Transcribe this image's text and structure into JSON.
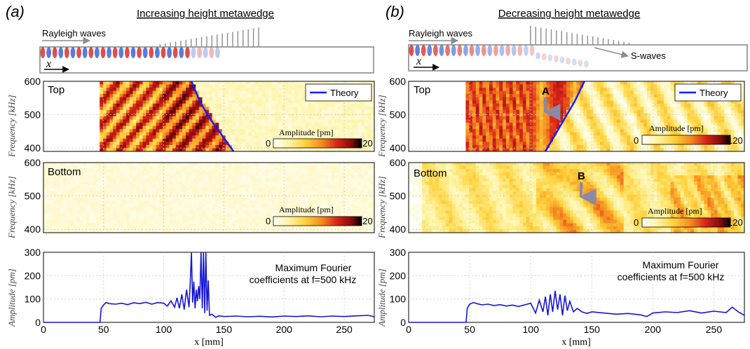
{
  "colors": {
    "theory": "#1a1aff",
    "line": "#1515d6",
    "grid": "#c8c8c8",
    "wave_red": "#d8302a",
    "wave_blue": "#3a66d6",
    "arrow": "#8a8aa8",
    "pillar": "#8c8c8c"
  },
  "colormap": [
    "#ffffff",
    "#fff3a0",
    "#ffd23c",
    "#f58a1f",
    "#d8241a",
    "#8a0c0c",
    "#000000"
  ],
  "chart_data": [
    {
      "id": "a",
      "panel_label": "(a)",
      "title": "Increasing height metawedge",
      "schematic": {
        "rayleigh_label": "Rayleigh waves",
        "x_label": "x",
        "pillar_profile": "increasing"
      },
      "top_map": {
        "type": "heatmap",
        "label": "Top",
        "legend": "Theory",
        "ylabel": "Frequency [kHz]",
        "yticks": [
          400,
          500,
          600
        ],
        "ylim": [
          390,
          600
        ],
        "xlim": [
          0,
          275
        ],
        "colorbar_title": "Amplitude [pm]",
        "colorbar_min": "0",
        "colorbar_max": "120",
        "theory_curve": [
          [
            123,
            600
          ],
          [
            130,
            540
          ],
          [
            138,
            490
          ],
          [
            146,
            450
          ],
          [
            158,
            390
          ]
        ]
      },
      "bottom_map": {
        "type": "heatmap",
        "label": "Bottom",
        "ylabel": "Frequency [kHz]",
        "yticks": [
          400,
          500,
          600
        ],
        "ylim": [
          390,
          600
        ],
        "xlim": [
          0,
          275
        ],
        "colorbar_title": "Amplitude [pm]",
        "colorbar_min": "0",
        "colorbar_max": "120"
      },
      "amplitude": {
        "type": "line",
        "ylabel": "Amplitude [pm]",
        "xlabel": "x [mm]",
        "xlim": [
          0,
          275
        ],
        "ylim": [
          0,
          300
        ],
        "xticks": [
          0,
          50,
          100,
          150,
          200,
          250
        ],
        "yticks": [
          0,
          100,
          200,
          300
        ],
        "annotation_line1": "Maximum Fourier",
        "annotation_line2": "coefficients at f=500 kHz",
        "x": [
          0,
          47,
          48,
          50,
          52,
          55,
          60,
          65,
          70,
          75,
          80,
          85,
          90,
          95,
          100,
          103,
          106,
          109,
          111,
          113,
          115,
          117,
          119,
          121,
          122,
          123,
          124,
          125,
          126,
          127,
          128,
          129,
          130,
          131,
          132,
          133,
          134,
          135,
          136,
          137,
          138,
          140,
          143,
          146,
          150,
          160,
          170,
          180,
          190,
          200,
          210,
          220,
          230,
          240,
          250,
          260,
          270,
          275
        ],
        "y": [
          0,
          0,
          60,
          75,
          85,
          80,
          78,
          82,
          76,
          84,
          80,
          86,
          78,
          85,
          82,
          70,
          92,
          65,
          105,
          60,
          120,
          55,
          140,
          65,
          170,
          300,
          85,
          175,
          60,
          140,
          90,
          155,
          100,
          300,
          60,
          300,
          40,
          300,
          50,
          180,
          30,
          35,
          22,
          28,
          25,
          27,
          24,
          26,
          23,
          27,
          25,
          28,
          24,
          27,
          25,
          28,
          30,
          24
        ]
      }
    },
    {
      "id": "b",
      "panel_label": "(b)",
      "title": "Decreasing height metawedge",
      "schematic": {
        "rayleigh_label": "Rayleigh waves",
        "swave_label": "S-waves",
        "x_label": "x",
        "pillar_profile": "decreasing"
      },
      "top_map": {
        "type": "heatmap",
        "label": "Top",
        "legend": "Theory",
        "ylabel": "Frequency [kHz]",
        "yticks": [
          400,
          500,
          600
        ],
        "ylim": [
          390,
          600
        ],
        "xlim": [
          0,
          275
        ],
        "colorbar_title": "Amplitude [pm]",
        "colorbar_min": "0",
        "colorbar_max": "120",
        "marker": "A",
        "theory_curve": [
          [
            112,
            390
          ],
          [
            120,
            440
          ],
          [
            128,
            490
          ],
          [
            136,
            540
          ],
          [
            144,
            600
          ]
        ]
      },
      "bottom_map": {
        "type": "heatmap",
        "label": "Bottom",
        "ylabel": "Frequency [kHz]",
        "yticks": [
          400,
          500,
          600
        ],
        "ylim": [
          390,
          600
        ],
        "xlim": [
          0,
          275
        ],
        "colorbar_title": "Amplitude [pm]",
        "colorbar_min": "0",
        "colorbar_max": "120",
        "marker": "B"
      },
      "amplitude": {
        "type": "line",
        "ylabel": "Amplitude [pm]",
        "xlabel": "x [mm]",
        "xlim": [
          0,
          275
        ],
        "ylim": [
          0,
          300
        ],
        "xticks": [
          0,
          50,
          100,
          150,
          200,
          250
        ],
        "yticks": [
          0,
          100,
          200,
          300
        ],
        "annotation_line1": "Maximum Fourier",
        "annotation_line2": "coefficients at f=500 kHz",
        "x": [
          0,
          47,
          48,
          50,
          53,
          56,
          60,
          65,
          70,
          75,
          80,
          85,
          90,
          95,
          100,
          104,
          107,
          110,
          112,
          114,
          116,
          118,
          120,
          122,
          124,
          126,
          128,
          130,
          132,
          135,
          138,
          142,
          146,
          150,
          160,
          170,
          180,
          190,
          195,
          200,
          210,
          220,
          230,
          240,
          250,
          260,
          265,
          270,
          275
        ],
        "y": [
          0,
          0,
          60,
          78,
          85,
          80,
          75,
          78,
          72,
          76,
          70,
          74,
          68,
          75,
          82,
          40,
          95,
          45,
          110,
          30,
          120,
          45,
          135,
          55,
          120,
          30,
          115,
          50,
          90,
          45,
          60,
          45,
          38,
          45,
          40,
          35,
          38,
          32,
          25,
          40,
          45,
          42,
          50,
          40,
          48,
          42,
          65,
          45,
          30
        ]
      }
    }
  ]
}
